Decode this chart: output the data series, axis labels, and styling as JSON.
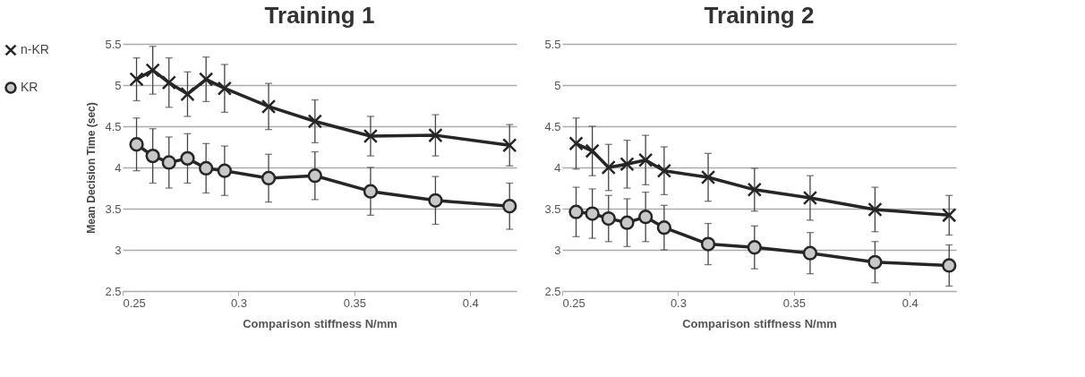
{
  "chart_data": [
    {
      "type": "line",
      "title": "Training 1",
      "xlabel": "Comparison stiffness N/mm",
      "ylabel": "Mean Decision Time (sec)",
      "x": [
        0.256,
        0.263,
        0.27,
        0.278,
        0.286,
        0.294,
        0.313,
        0.333,
        0.357,
        0.385,
        0.417
      ],
      "xlim": [
        0.25,
        0.42
      ],
      "xticks": [
        0.25,
        0.3,
        0.35,
        0.4
      ],
      "ylim": [
        2.5,
        5.5
      ],
      "yticks": [
        2.5,
        3,
        3.5,
        4,
        4.5,
        5,
        5.5
      ],
      "grid": "y",
      "legend": "left",
      "series": [
        {
          "name": "n-KR",
          "color": "#262626",
          "marker": "cross",
          "values": [
            5.07,
            5.18,
            5.03,
            4.89,
            5.07,
            4.96,
            4.74,
            4.56,
            4.38,
            4.39,
            4.27
          ],
          "errors": [
            0.26,
            0.29,
            0.3,
            0.27,
            0.27,
            0.29,
            0.28,
            0.26,
            0.24,
            0.25,
            0.25
          ]
        },
        {
          "name": "KR",
          "color": "#c8c8c8",
          "marker": "circle",
          "values": [
            4.28,
            4.14,
            4.06,
            4.11,
            3.99,
            3.96,
            3.87,
            3.9,
            3.71,
            3.6,
            3.53
          ],
          "errors": [
            0.32,
            0.33,
            0.31,
            0.3,
            0.3,
            0.3,
            0.29,
            0.29,
            0.29,
            0.29,
            0.28
          ]
        }
      ]
    },
    {
      "type": "line",
      "title": "Training 2",
      "xlabel": "Comparison stiffness N/mm",
      "x": [
        0.256,
        0.263,
        0.27,
        0.278,
        0.286,
        0.294,
        0.313,
        0.333,
        0.357,
        0.385,
        0.417
      ],
      "xlim": [
        0.25,
        0.42
      ],
      "xticks": [
        0.25,
        0.3,
        0.35,
        0.4
      ],
      "ylim": [
        2.5,
        5.5
      ],
      "yticks": [
        2.5,
        3,
        3.5,
        4,
        4.5,
        5,
        5.5
      ],
      "grid": "y",
      "series": [
        {
          "color": "#262626",
          "marker": "cross",
          "values": [
            4.29,
            4.2,
            4.0,
            4.04,
            4.09,
            3.96,
            3.88,
            3.73,
            3.63,
            3.49,
            3.42
          ],
          "errors": [
            0.31,
            0.3,
            0.28,
            0.29,
            0.3,
            0.29,
            0.29,
            0.26,
            0.27,
            0.27,
            0.24
          ]
        },
        {
          "color": "#c8c8c8",
          "marker": "circle",
          "values": [
            3.46,
            3.44,
            3.38,
            3.33,
            3.4,
            3.27,
            3.07,
            3.03,
            2.96,
            2.85,
            2.81
          ],
          "errors": [
            0.3,
            0.3,
            0.28,
            0.29,
            0.3,
            0.27,
            0.25,
            0.26,
            0.25,
            0.25,
            0.25
          ]
        }
      ]
    }
  ]
}
